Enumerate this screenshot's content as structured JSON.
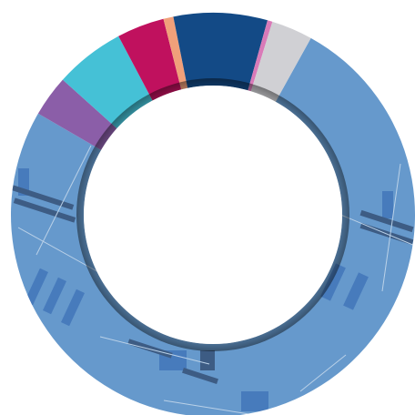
{
  "chart_data": {
    "type": "donut",
    "values": [
      75.3,
      3.3,
      5.6,
      3.8,
      0.8,
      7.5,
      0.4,
      3.3
    ],
    "colors": [
      "#6699cc",
      "#8b5ea8",
      "#45c1d6",
      "#c0115e",
      "#f0a07a",
      "#134a86",
      "#d97ab8",
      "#d0d0d4"
    ]
  }
}
